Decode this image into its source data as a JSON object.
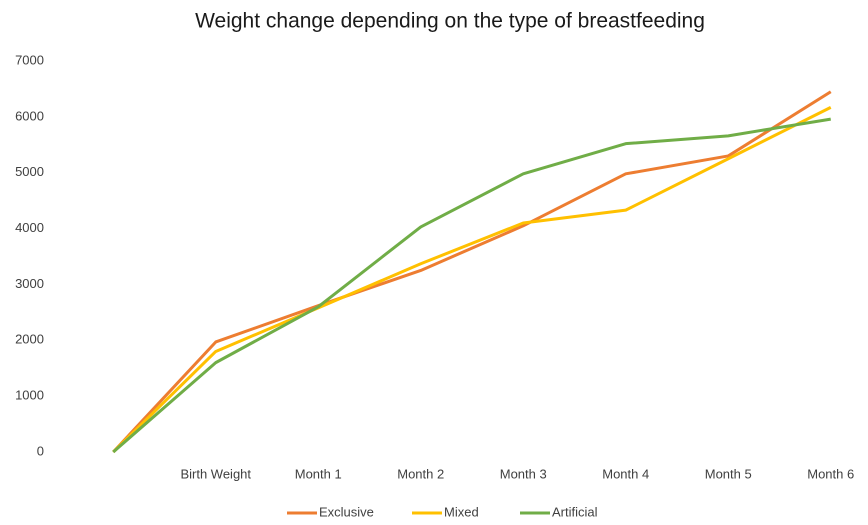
{
  "chart_data": {
    "type": "line",
    "title": "Weight change depending on the type of breastfeeding",
    "categories": [
      null,
      "Birth Weight",
      "Month 1",
      "Month 2",
      "Month 3",
      "Month 4",
      "Month 5",
      "Month 6"
    ],
    "series": [
      {
        "name": "Exclusive",
        "color": "#ed7d31",
        "values": [
          0,
          1970,
          2620,
          3250,
          4050,
          4980,
          5300,
          6450
        ]
      },
      {
        "name": "Mixed",
        "color": "#ffc000",
        "values": [
          0,
          1800,
          2580,
          3370,
          4100,
          4330,
          5250,
          6170
        ]
      },
      {
        "name": "Artificial",
        "color": "#70ad47",
        "values": [
          0,
          1600,
          2600,
          4030,
          4980,
          5520,
          5660,
          5960
        ]
      }
    ],
    "ylim": [
      0,
      7000
    ],
    "yticks": [
      0,
      1000,
      2000,
      3000,
      4000,
      5000,
      6000,
      7000
    ],
    "grid": false,
    "legend": "bottom"
  }
}
